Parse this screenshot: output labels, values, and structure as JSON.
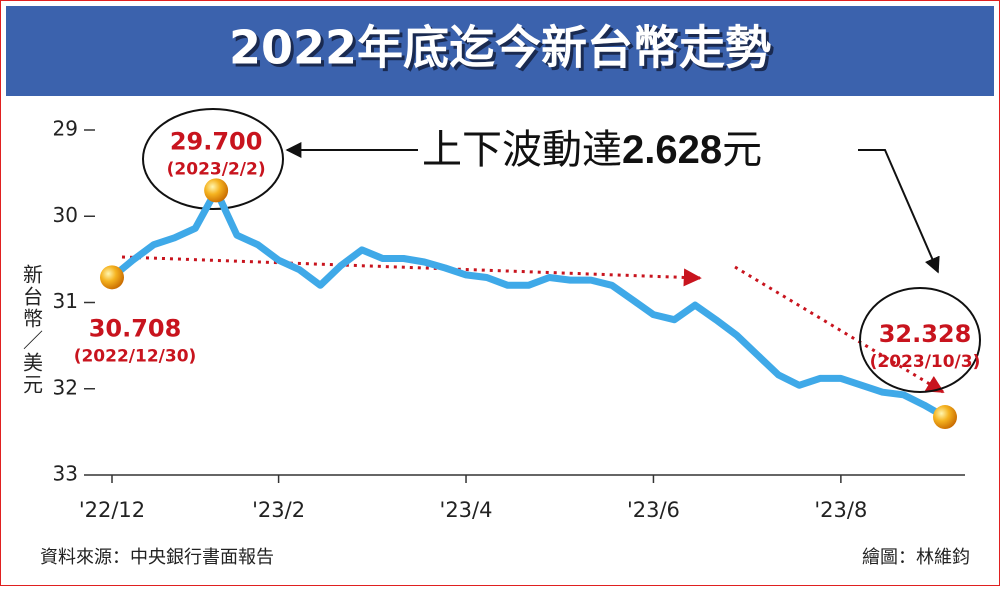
{
  "chart_data": {
    "type": "line",
    "title": "2022年底迄今新台幣走勢",
    "y_label": "新台幣／美元",
    "source": "資料來源：中央銀行書面報告",
    "credit": "繪圖：林維鈞",
    "annotation": {
      "prefix": "上下波動達",
      "amount": "2.628",
      "suffix": "元"
    },
    "categories": [
      "'22/12",
      null,
      null,
      null,
      null,
      null,
      null,
      null,
      "'23/2",
      null,
      null,
      null,
      null,
      null,
      null,
      null,
      null,
      "'23/4",
      null,
      null,
      null,
      null,
      null,
      null,
      null,
      null,
      "'23/6",
      null,
      null,
      null,
      null,
      null,
      null,
      null,
      null,
      "'23/8",
      null,
      null,
      null,
      null,
      null
    ],
    "values": [
      30.708,
      30.51,
      30.33,
      30.25,
      30.14,
      29.7,
      30.22,
      30.33,
      30.51,
      30.62,
      30.8,
      30.57,
      30.39,
      30.49,
      30.49,
      30.53,
      30.6,
      30.68,
      30.71,
      30.8,
      30.8,
      30.71,
      30.74,
      30.74,
      30.8,
      30.97,
      31.14,
      31.2,
      31.03,
      31.2,
      31.38,
      31.61,
      31.84,
      31.96,
      31.88,
      31.88,
      31.96,
      32.04,
      32.07,
      32.19,
      32.328
    ],
    "value_labels": [
      "30.708",
      null,
      null,
      null,
      null,
      "29.700",
      null,
      null,
      null,
      null,
      null,
      null,
      null,
      null,
      null,
      null,
      null,
      null,
      null,
      null,
      null,
      null,
      null,
      null,
      null,
      null,
      null,
      null,
      null,
      null,
      null,
      null,
      null,
      null,
      null,
      null,
      null,
      null,
      null,
      null,
      "32.328"
    ],
    "point_dates": [
      "(2022/12/30)",
      null,
      null,
      null,
      null,
      "(2023/2/2)",
      null,
      null,
      null,
      null,
      null,
      null,
      null,
      null,
      null,
      null,
      null,
      null,
      null,
      null,
      null,
      null,
      null,
      null,
      null,
      null,
      null,
      null,
      null,
      null,
      null,
      null,
      null,
      null,
      null,
      null,
      null,
      null,
      null,
      null,
      "(2023/10/3)"
    ],
    "color": "#3fa9e8",
    "ylim": [
      29,
      33
    ],
    "yticks": [
      29,
      30,
      31,
      32,
      33
    ],
    "y_reversed": true
  }
}
